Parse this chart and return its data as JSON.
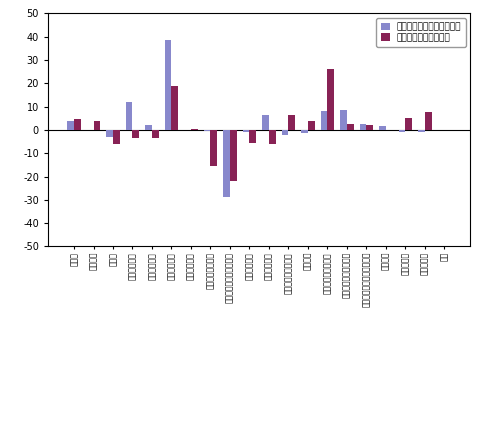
{
  "categories": [
    "鉱工業",
    "製造工業",
    "食調業",
    "非鉄金属工業",
    "金属製品工業",
    "一般機械工業",
    "電気機械工業",
    "情報通信機械工業",
    "電子部品・デバイス工業",
    "輸送機械工業",
    "精密機械工業",
    "窯業・土石製品工業",
    "化学工業",
    "石油・石炭製品工業",
    "プラスチック製品工業",
    "パルプ・紙・紙加工品工業",
    "鑄鍛工業",
    "食料品工業",
    "その他工業",
    "鉱業"
  ],
  "mom": [
    4.0,
    0.0,
    -3.0,
    12.0,
    2.0,
    38.5,
    0.0,
    -0.5,
    -29.0,
    -1.0,
    6.5,
    -2.0,
    -1.5,
    8.0,
    8.5,
    2.5,
    1.5,
    -1.0,
    -1.0,
    0.0
  ],
  "yoy": [
    4.5,
    4.0,
    -6.0,
    -3.5,
    -3.5,
    19.0,
    0.5,
    -15.5,
    -22.0,
    -5.5,
    -6.0,
    6.5,
    4.0,
    26.0,
    2.5,
    2.0,
    0.0,
    5.0,
    7.5,
    0.0
  ],
  "mom_color": "#8888cc",
  "yoy_color": "#882255",
  "ylim": [
    -50,
    50
  ],
  "yticks": [
    -50,
    -40,
    -30,
    -20,
    -10,
    0,
    10,
    20,
    30,
    40,
    50
  ],
  "legend_mom": "前月比（季節調整済指数）",
  "legend_yoy": "前年同月比（原指数）",
  "bar_width": 0.35,
  "figsize": [
    4.8,
    4.48
  ],
  "dpi": 100
}
